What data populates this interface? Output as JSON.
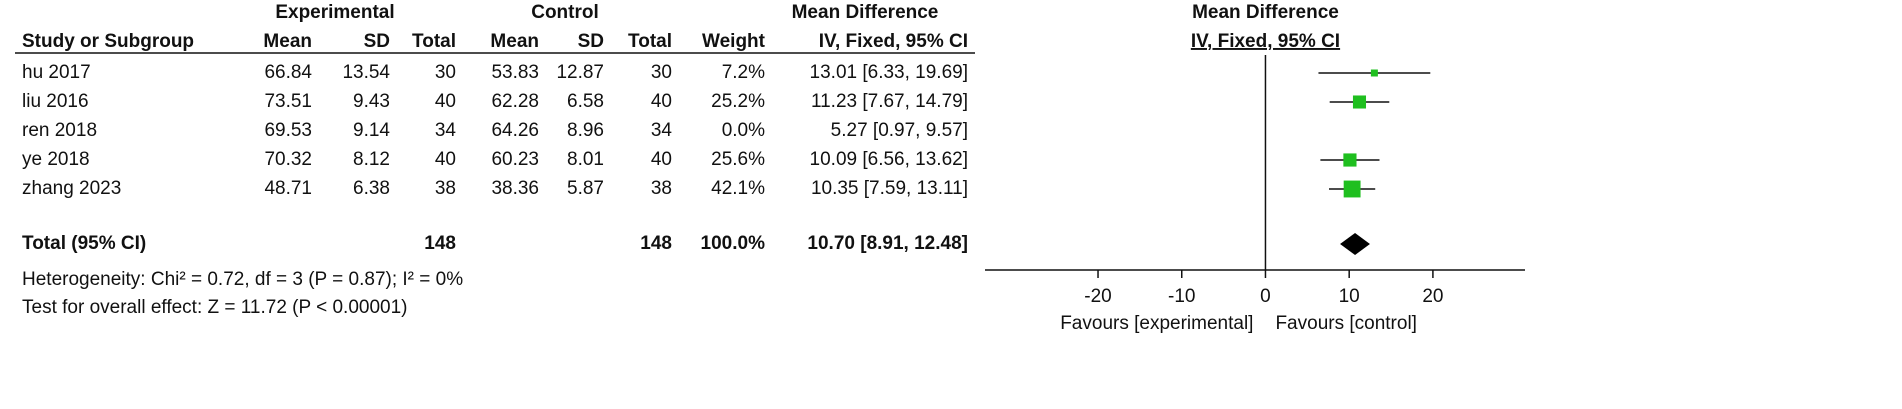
{
  "table": {
    "group_headers": [
      "Experimental",
      "Control",
      "Mean Difference"
    ],
    "columns": [
      "Study or Subgroup",
      "Mean",
      "SD",
      "Total",
      "Mean",
      "SD",
      "Total",
      "Weight",
      "IV, Fixed, 95% CI"
    ],
    "rows": [
      [
        "hu 2017",
        "66.84",
        "13.54",
        "30",
        "53.83",
        "12.87",
        "30",
        "7.2%",
        "13.01 [6.33, 19.69]"
      ],
      [
        "liu 2016",
        "73.51",
        "9.43",
        "40",
        "62.28",
        "6.58",
        "40",
        "25.2%",
        "11.23 [7.67, 14.79]"
      ],
      [
        "ren 2018",
        "69.53",
        "9.14",
        "34",
        "64.26",
        "8.96",
        "34",
        "0.0%",
        "5.27 [0.97, 9.57]"
      ],
      [
        "ye 2018",
        "70.32",
        "8.12",
        "40",
        "60.23",
        "8.01",
        "40",
        "25.6%",
        "10.09 [6.56, 13.62]"
      ],
      [
        "zhang 2023",
        "48.71",
        "6.38",
        "38",
        "38.36",
        "5.87",
        "38",
        "42.1%",
        "10.35 [7.59, 13.11]"
      ]
    ],
    "total": [
      "Total (95% CI)",
      "148",
      "148",
      "100.0%",
      "10.70 [8.91, 12.48]"
    ],
    "heterogeneity": "Heterogeneity: Chi² = 0.72, df = 3 (P = 0.87); I² = 0%",
    "overall_effect": "Test for overall effect: Z = 11.72 (P < 0.00001)"
  },
  "chart_data": {
    "type": "forest",
    "title": "Mean Difference",
    "subtitle": "IV, Fixed, 95% CI",
    "values": [
      13.01,
      11.23,
      null,
      10.09,
      10.35
    ],
    "lower": [
      6.33,
      7.67,
      null,
      6.56,
      7.59
    ],
    "upper": [
      19.69,
      14.79,
      null,
      13.62,
      13.11
    ],
    "weights": [
      7.2,
      25.2,
      null,
      25.6,
      42.1
    ],
    "color": "#1fbf1f",
    "total": {
      "value": 10.7,
      "lower": 8.91,
      "upper": 12.48,
      "color": "#000000"
    },
    "xlim": [
      -33.5,
      31
    ],
    "xticks": [
      -20,
      -10,
      0,
      10,
      20
    ],
    "left_label": "Favours [experimental]",
    "right_label": "Favours [control]"
  }
}
